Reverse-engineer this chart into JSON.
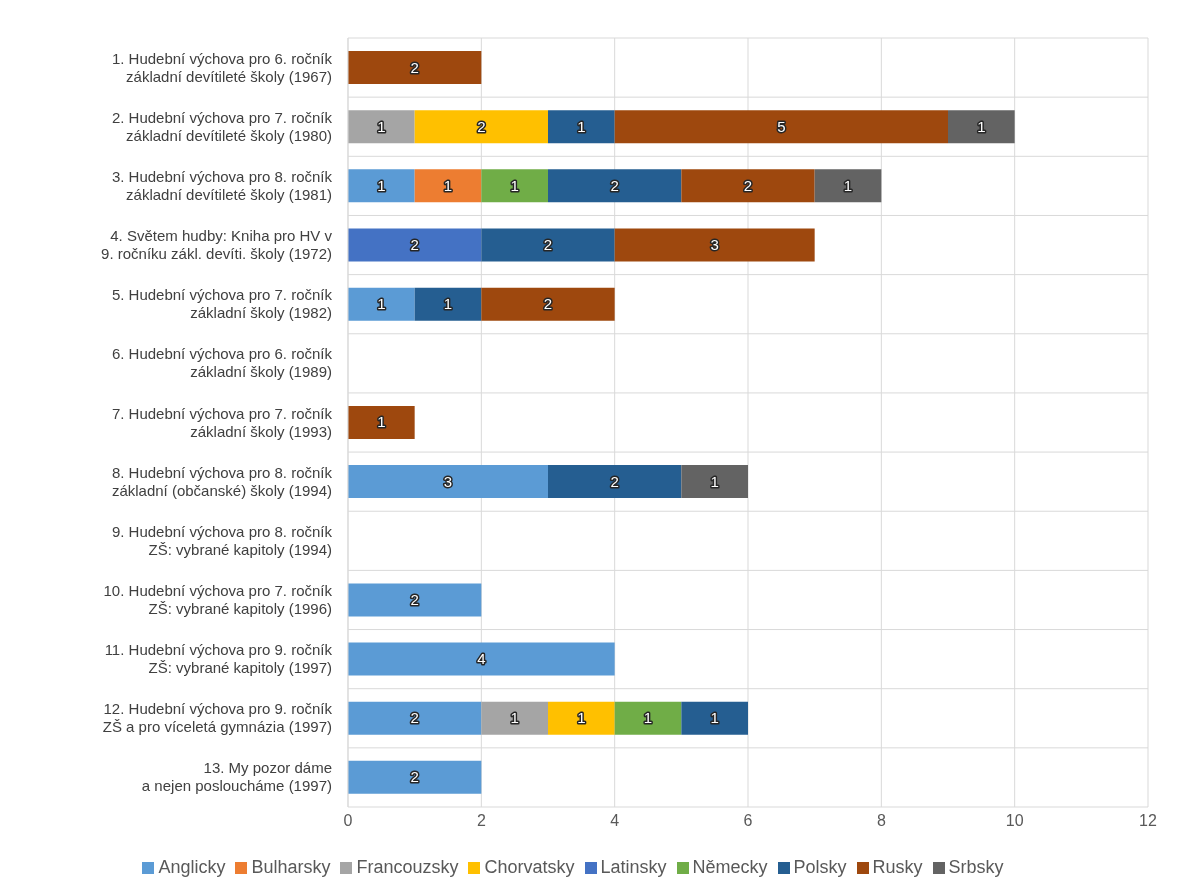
{
  "chart_data": {
    "type": "bar",
    "orientation": "horizontal",
    "stacked": true,
    "data_labels": true,
    "grid": true,
    "legend": "bottom",
    "categories": [
      "1. Hudební výchova pro 6. ročník\nzákladní devítileté školy (1967)",
      "2. Hudební výchova pro 7. ročník\nzákladní devítileté školy (1980)",
      "3. Hudební výchova pro 8. ročník\nzákladní devítileté školy (1981)",
      "4. Světem hudby: Kniha pro HV v\n9. ročníku zákl. devíti. školy (1972)",
      "5. Hudební výchova pro 7. ročník\nzákladní školy (1982)",
      "6. Hudební výchova pro 6. ročník\nzákladní školy (1989)",
      "7. Hudební výchova pro 7. ročník\nzákladní školy (1993)",
      "8. Hudební výchova pro 8. ročník\nzákladní (občanské) školy (1994)",
      "9. Hudební výchova pro 8. ročník\nZŠ: vybrané kapitoly (1994)",
      "10. Hudební výchova pro 7. ročník\nZŠ: vybrané kapitoly (1996)",
      "11. Hudební výchova pro 9. ročník\nZŠ: vybrané kapitoly (1997)",
      "12. Hudební výchova pro 9. ročník\nZŠ a pro víceletá gymnázia (1997)",
      "13. My pozor dáme\na nejen posloucháme (1997)"
    ],
    "xlim": [
      0,
      12
    ],
    "xticks": [
      0,
      2,
      4,
      6,
      8,
      10,
      12
    ],
    "series": [
      {
        "name": "Anglicky",
        "color": "#5b9bd5",
        "values": [
          null,
          null,
          1,
          null,
          1,
          null,
          null,
          3,
          null,
          2,
          4,
          2,
          2
        ]
      },
      {
        "name": "Bulharsky",
        "color": "#ed7d31",
        "values": [
          null,
          null,
          1,
          null,
          null,
          null,
          null,
          null,
          null,
          null,
          null,
          null,
          null
        ]
      },
      {
        "name": "Francouzsky",
        "color": "#a5a5a5",
        "values": [
          null,
          1,
          null,
          null,
          null,
          null,
          null,
          null,
          null,
          null,
          null,
          1,
          null
        ]
      },
      {
        "name": "Chorvatsky",
        "color": "#ffc000",
        "values": [
          null,
          2,
          null,
          null,
          null,
          null,
          null,
          null,
          null,
          null,
          null,
          1,
          null
        ]
      },
      {
        "name": "Latinsky",
        "color": "#4472c4",
        "values": [
          null,
          null,
          null,
          2,
          null,
          null,
          null,
          null,
          null,
          null,
          null,
          null,
          null
        ]
      },
      {
        "name": "Německy",
        "color": "#70ad47",
        "values": [
          null,
          null,
          1,
          null,
          null,
          null,
          null,
          null,
          null,
          null,
          null,
          1,
          null
        ]
      },
      {
        "name": "Polsky",
        "color": "#255e91",
        "values": [
          null,
          1,
          2,
          2,
          1,
          null,
          null,
          2,
          null,
          null,
          null,
          1,
          null
        ]
      },
      {
        "name": "Rusky",
        "color": "#9e480e",
        "values": [
          2,
          5,
          2,
          3,
          2,
          null,
          1,
          null,
          null,
          null,
          null,
          null,
          null
        ]
      },
      {
        "name": "Srbsky",
        "color": "#636363",
        "values": [
          null,
          1,
          1,
          null,
          null,
          null,
          null,
          1,
          null,
          null,
          null,
          null,
          null
        ]
      }
    ]
  }
}
